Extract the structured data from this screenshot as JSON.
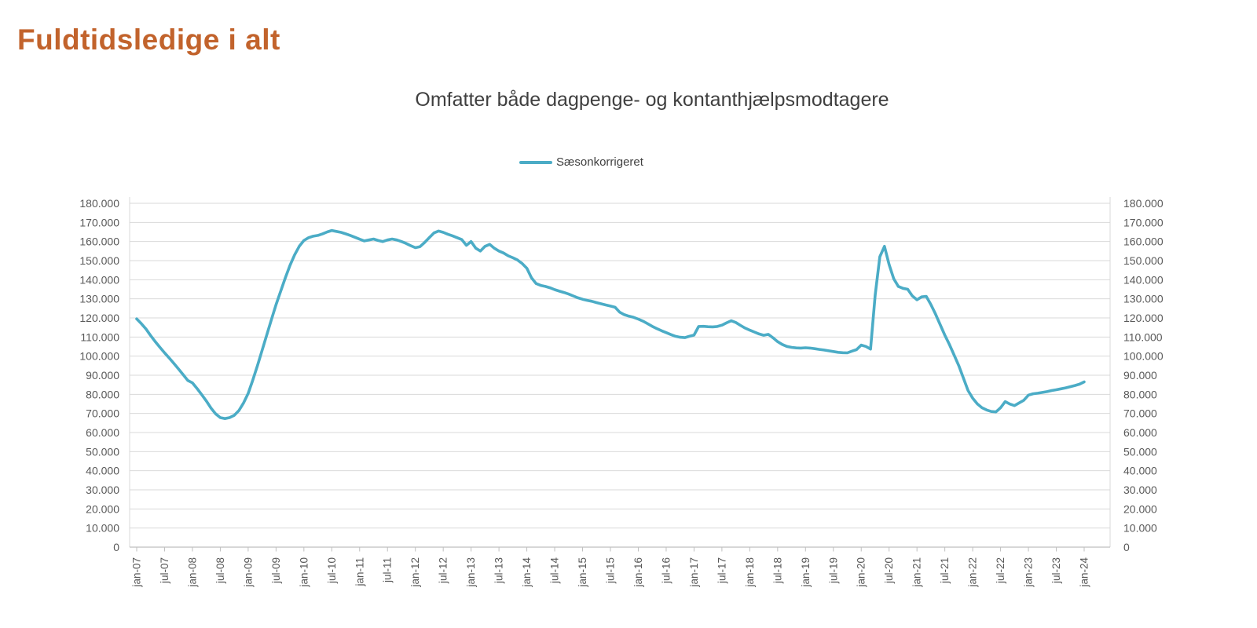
{
  "page": {
    "title": "Fuldtidsledige i alt"
  },
  "colors": {
    "title": "#C2632C",
    "line": "#4BACC6",
    "grid": "#D9D9D9",
    "axis": "#BFBFBF",
    "tick_label": "#595959",
    "subtitle": "#3F3F3F",
    "legend_text": "#404040"
  },
  "chart_data": {
    "type": "line",
    "title": "Omfatter både dagpenge- og kontanthjælpsmodtagere",
    "legend_position": "top",
    "grid": "horizontal",
    "x_unit": "month",
    "x_start": "jan-07",
    "x_end": "jan-24",
    "x_tick_labels": [
      "jan-07",
      "jul-07",
      "jan-08",
      "jul-08",
      "jan-09",
      "jul-09",
      "jan-10",
      "jul-10",
      "jan-11",
      "jul-11",
      "jan-12",
      "jul-12",
      "jan-13",
      "jul-13",
      "jan-14",
      "jul-14",
      "jan-15",
      "jul-15",
      "jan-16",
      "jul-16",
      "jan-17",
      "jul-17",
      "jan-18",
      "jul-18",
      "jan-19",
      "jul-19",
      "jan-20",
      "jul-20",
      "jan-21",
      "jul-21",
      "jan-22",
      "jul-22",
      "jan-23",
      "jul-23",
      "jan-24"
    ],
    "ylim": [
      0,
      180000
    ],
    "ytick_step": 10000,
    "y_tick_labels": [
      "0",
      "10.000",
      "20.000",
      "30.000",
      "40.000",
      "50.000",
      "60.000",
      "70.000",
      "80.000",
      "90.000",
      "100.000",
      "110.000",
      "120.000",
      "130.000",
      "140.000",
      "150.000",
      "160.000",
      "170.000",
      "180.000"
    ],
    "y_axis_sides": [
      "left",
      "right"
    ],
    "series": [
      {
        "name": "Sæsonkorrigeret",
        "color": "#4BACC6",
        "values": [
          119500,
          117000,
          114200,
          110800,
          107600,
          104600,
          101700,
          99000,
          96200,
          93300,
          90300,
          87300,
          86000,
          83000,
          79800,
          76500,
          72800,
          69800,
          67800,
          67300,
          67800,
          69000,
          71500,
          75500,
          80500,
          87500,
          95000,
          103000,
          111000,
          119000,
          127000,
          134000,
          141000,
          147500,
          153000,
          157500,
          160500,
          162000,
          162800,
          163200,
          164000,
          165000,
          165800,
          165300,
          164800,
          164000,
          163200,
          162200,
          161200,
          160300,
          160800,
          161300,
          160500,
          160000,
          160800,
          161300,
          160800,
          160000,
          159000,
          157800,
          156800,
          157300,
          159500,
          162000,
          164500,
          165500,
          164800,
          163800,
          163000,
          162000,
          161000,
          158000,
          160000,
          156500,
          155000,
          157500,
          158500,
          156500,
          155000,
          154000,
          152500,
          151500,
          150300,
          148500,
          146000,
          141000,
          138000,
          137000,
          136500,
          135800,
          134800,
          134000,
          133300,
          132500,
          131500,
          130500,
          129800,
          129200,
          128700,
          128000,
          127400,
          126800,
          126200,
          125600,
          123000,
          121700,
          120900,
          120300,
          119400,
          118300,
          117000,
          115600,
          114400,
          113300,
          112300,
          111300,
          110400,
          109900,
          109700,
          110400,
          111000,
          115500,
          115600,
          115400,
          115300,
          115500,
          116200,
          117400,
          118500,
          117600,
          116100,
          114700,
          113600,
          112600,
          111600,
          110900,
          111400,
          109600,
          107600,
          106100,
          105100,
          104600,
          104300,
          104200,
          104400,
          104200,
          103900,
          103500,
          103200,
          102800,
          102400,
          102000,
          101800,
          101700,
          102600,
          103400,
          105800,
          105100,
          103700,
          132000,
          152000,
          157500,
          148000,
          140500,
          136500,
          135500,
          135000,
          131500,
          129500,
          131000,
          131300,
          127000,
          122000,
          116500,
          111000,
          106000,
          100500,
          95000,
          88500,
          82000,
          78000,
          75000,
          73000,
          71800,
          71000,
          70800,
          73000,
          76200,
          74900,
          74100,
          75500,
          76900,
          79600,
          80300,
          80600,
          81000,
          81400,
          82000,
          82400,
          82900,
          83400,
          84000,
          84600,
          85300,
          86500
        ]
      }
    ]
  }
}
